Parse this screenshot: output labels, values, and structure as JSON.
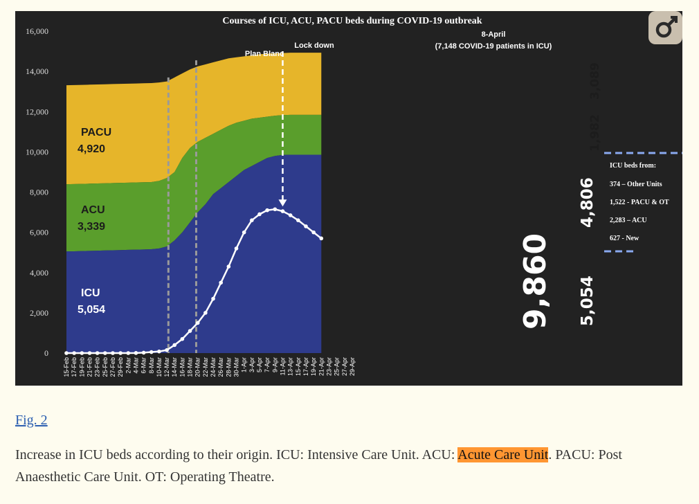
{
  "figure": {
    "link_label": "Fig. 2",
    "caption": {
      "before": "Increase in ICU beds according to their origin. ICU: Intensive Care Unit. ACU: ",
      "highlight": "Acute Care Unit",
      "after": ". PACU: Post Anaesthetic Care Unit. OT: Operating Theatre."
    },
    "colors": {
      "background": "#222222",
      "icu": "#2e3b8c",
      "acu": "#5a9e2c",
      "pacu": "#e6b52a",
      "curve": "#ffffff",
      "dashed_box": "#8aaaf0",
      "highlight": "#ff9632",
      "link": "#2a5db0"
    },
    "logo_icon": "male-symbol-icon"
  },
  "chart_data": {
    "type": "area",
    "title": "Courses of ICU, ACU, PACU beds during COVID-19 outbreak",
    "xlabel": "",
    "ylabel": "",
    "ylim": [
      0,
      16000
    ],
    "yticks": [
      "0",
      "2,000",
      "4,000",
      "6,000",
      "8,000",
      "10,000",
      "12,000",
      "14,000",
      "16,000"
    ],
    "ytick_values": [
      0,
      2000,
      4000,
      6000,
      8000,
      10000,
      12000,
      14000,
      16000
    ],
    "x": [
      "15-Feb",
      "17-Feb",
      "19-Feb",
      "21-Feb",
      "23-Feb",
      "25-Feb",
      "27-Feb",
      "29-Feb",
      "2-Mar",
      "4-Mar",
      "6-Mar",
      "8-Mar",
      "10-Mar",
      "12-Mar",
      "14-Mar",
      "16-Mar",
      "18-Mar",
      "20-Mar",
      "22-Mar",
      "24-Mar",
      "26-Mar",
      "28-Mar",
      "30-Mar",
      "1-Apr",
      "3-Apr",
      "5-Apr",
      "7-Apr",
      "9-Apr",
      "11-Apr",
      "13-Apr",
      "15-Apr",
      "17-Apr",
      "19-Apr",
      "21-Apr",
      "23-Apr",
      "25-Apr",
      "27-Apr",
      "29-Apr"
    ],
    "series": [
      {
        "name": "ICU",
        "values": [
          5054,
          5060,
          5070,
          5080,
          5090,
          5100,
          5110,
          5120,
          5130,
          5140,
          5150,
          5160,
          5200,
          5300,
          5600,
          6000,
          6500,
          7000,
          7400,
          7900,
          8200,
          8500,
          8800,
          9100,
          9300,
          9500,
          9700,
          9800,
          9850,
          9860,
          9860,
          9860,
          9860,
          9860,
          null,
          null,
          null,
          null
        ]
      },
      {
        "name": "ACU",
        "values": [
          8393,
          8400,
          8410,
          8420,
          8430,
          8440,
          8450,
          8460,
          8470,
          8480,
          8490,
          8500,
          8560,
          8700,
          9000,
          9700,
          10200,
          10500,
          10700,
          10900,
          11100,
          11300,
          11450,
          11550,
          11650,
          11700,
          11750,
          11800,
          11830,
          11842,
          11842,
          11842,
          11842,
          11842,
          null,
          null,
          null,
          null
        ]
      },
      {
        "name": "PACU",
        "values": [
          13313,
          13320,
          13330,
          13340,
          13350,
          13360,
          13370,
          13380,
          13390,
          13400,
          13410,
          13420,
          13450,
          13500,
          13700,
          13900,
          14100,
          14250,
          14350,
          14450,
          14550,
          14650,
          14700,
          14750,
          14800,
          14850,
          14880,
          14900,
          14910,
          14931,
          14931,
          14931,
          14931,
          14931,
          null,
          null,
          null,
          null
        ]
      },
      {
        "name": "COVID-19 patients in ICU",
        "values": [
          0,
          0,
          0,
          0,
          0,
          0,
          0,
          0,
          0,
          5,
          20,
          50,
          80,
          150,
          400,
          700,
          1100,
          1500,
          2000,
          2700,
          3500,
          4300,
          5200,
          6000,
          6600,
          6900,
          7100,
          7148,
          7050,
          6850,
          6600,
          6300,
          6000,
          5700,
          null,
          null,
          null,
          null
        ]
      }
    ],
    "annotations": {
      "plan_blanc": "Plan Blanc",
      "lock_down": "Lock down",
      "april_date": "8-April",
      "april_note": "(7,148 COVID-19 patients in ICU)",
      "pacu_label": "PACU",
      "pacu_value": "4,920",
      "acu_label": "ACU",
      "acu_value": "3,339",
      "icu_label": "ICU",
      "icu_value": "5,054",
      "icu_total": "9,860",
      "stack_icu": "5,054",
      "stack_new": "4,806",
      "stack_acu": "1,982",
      "stack_pacu": "3,089",
      "box_title": "ICU beds from:",
      "box_lines": [
        "374 – Other Units",
        "1,522 - PACU & OT",
        "2,283 – ACU",
        "627 - New"
      ]
    },
    "grid": false,
    "legend": "none"
  }
}
